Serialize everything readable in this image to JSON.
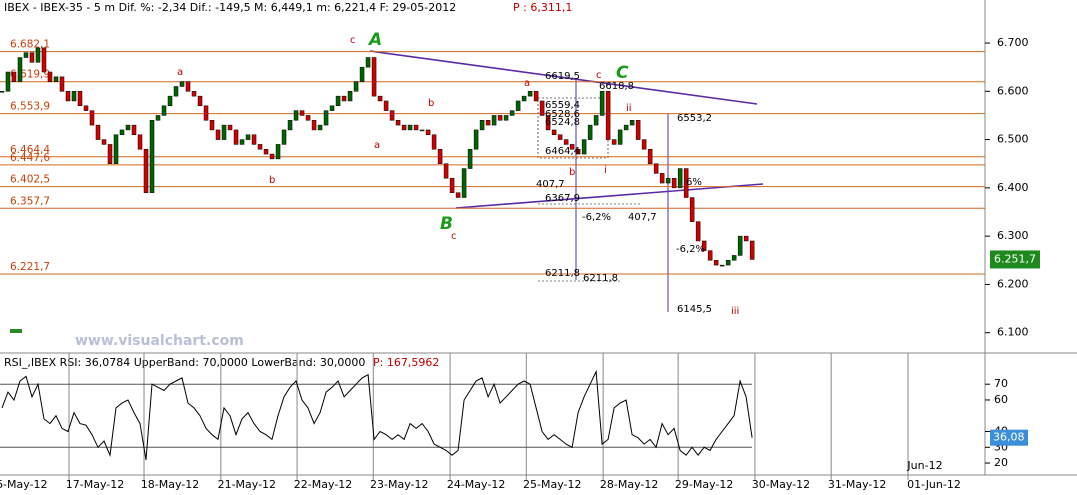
{
  "header": "IBEX - IBEX-35 -  5 m Dif. %: -2,34 Dif.: -149,5 M: 6,449,1 m: 6,221,4 F: 29-05-2012",
  "header_p": "P : 6,311,1",
  "watermark": "www.visualchart.com",
  "chart_data": {
    "type": "candlestick",
    "values": [
      6600,
      6640,
      6620,
      6670,
      6680,
      6660,
      6690,
      6640,
      6620,
      6630,
      6600,
      6580,
      6600,
      6570,
      6560,
      6530,
      6500,
      6490,
      6450,
      6510,
      6520,
      6530,
      6510,
      6480,
      6390,
      6540,
      6550,
      6570,
      6590,
      6610,
      6620,
      6600,
      6590,
      6570,
      6540,
      6520,
      6500,
      6530,
      6520,
      6490,
      6500,
      6510,
      6490,
      6480,
      6470,
      6460,
      6490,
      6520,
      6540,
      6560,
      6550,
      6540,
      6520,
      6530,
      6560,
      6570,
      6590,
      6580,
      6600,
      6620,
      6650,
      6670,
      6590,
      6580,
      6560,
      6540,
      6530,
      6520,
      6530,
      6520,
      6520,
      6510,
      6480,
      6450,
      6420,
      6390,
      6380,
      6440,
      6480,
      6520,
      6540,
      6530,
      6550,
      6540,
      6550,
      6560,
      6580,
      6590,
      6600,
      6580,
      6550,
      6520,
      6510,
      6500,
      6490,
      6480,
      6470,
      6500,
      6530,
      6550,
      6600,
      6500,
      6490,
      6520,
      6530,
      6540,
      6500,
      6480,
      6450,
      6430,
      6410,
      6420,
      6400,
      6440,
      6380,
      6330,
      6290,
      6270,
      6250,
      6240,
      6240,
      6250,
      6260,
      6300,
      6290,
      6251.7
    ],
    "last_label": "6.251,7",
    "up_color": "#006400",
    "down_color": "#d00000",
    "ylim": [
      6060,
      6756
    ],
    "yticks": [
      {
        "value": 6700,
        "label": "6.700"
      },
      {
        "value": 6600,
        "label": "6.600"
      },
      {
        "value": 6500,
        "label": "6.500"
      },
      {
        "value": 6400,
        "label": "6.400"
      },
      {
        "value": 6300,
        "label": "6.300"
      },
      {
        "value": 6200,
        "label": "6.200"
      },
      {
        "value": 6100,
        "label": "6.100"
      }
    ],
    "levels": [
      {
        "value": 6682.1,
        "label": "6.682,1"
      },
      {
        "value": 6619.9,
        "label": "6.619,9"
      },
      {
        "value": 6553.9,
        "label": "6.553,9"
      },
      {
        "value": 6464.4,
        "label": "6.464,4"
      },
      {
        "value": 6447.6,
        "label": "6.447,6"
      },
      {
        "value": 6402.5,
        "label": "6.402,5"
      },
      {
        "value": 6357.7,
        "label": "6.357,7"
      },
      {
        "value": 6221.7,
        "label": "6.221,7"
      }
    ],
    "xlim": [
      -0.33,
      163.8
    ],
    "xticks": [
      {
        "value": 3.3,
        "label": "6-May-12"
      },
      {
        "value": 15.5,
        "label": "17-May-12"
      },
      {
        "value": 28,
        "label": "18-May-12"
      },
      {
        "value": 40.8,
        "label": "21-May-12"
      },
      {
        "value": 53.5,
        "label": "22-May-12"
      },
      {
        "value": 66.2,
        "label": "23-May-12"
      },
      {
        "value": 79,
        "label": "24-May-12"
      },
      {
        "value": 91.7,
        "label": "25-May-12"
      },
      {
        "value": 104.5,
        "label": "28-May-12"
      },
      {
        "value": 117,
        "label": "29-May-12"
      },
      {
        "value": 129.8,
        "label": "30-May-12"
      },
      {
        "value": 142.5,
        "label": "31-May-12"
      },
      {
        "value": 155.3,
        "label": "01-Jun-12"
      }
    ],
    "month_label": "Jun-12",
    "annotations": [
      "A",
      "B",
      "C",
      "c",
      "a",
      "b",
      "a",
      "b",
      "c",
      "a",
      "c",
      "b",
      "i",
      "ii",
      "iii",
      "6619,5",
      "6618,8",
      "6559,4",
      "6528,6",
      "6524,8",
      "6464,4",
      "407,7",
      "6367,9",
      "-6,2%",
      "407,7",
      "-6,2%",
      "6211,8",
      "6211,8",
      "6553,2",
      "6145,5",
      "6%"
    ]
  },
  "rsi": {
    "type": "line",
    "header": "RSI_,IBEX RSI: 36,0784 UpperBand: 70,0000 LowerBand: 30,0000",
    "header_p": "P: 167,5962",
    "values": [
      55,
      65,
      60,
      72,
      75,
      62,
      70,
      48,
      45,
      50,
      42,
      40,
      52,
      45,
      44,
      38,
      30,
      34,
      25,
      55,
      58,
      60,
      52,
      45,
      22,
      70,
      68,
      66,
      70,
      72,
      74,
      58,
      55,
      50,
      42,
      38,
      35,
      55,
      50,
      38,
      48,
      52,
      45,
      40,
      38,
      35,
      50,
      62,
      68,
      72,
      60,
      55,
      45,
      52,
      65,
      68,
      72,
      62,
      66,
      70,
      74,
      76,
      35,
      40,
      38,
      35,
      38,
      35,
      45,
      42,
      45,
      40,
      32,
      30,
      28,
      25,
      28,
      60,
      66,
      72,
      74,
      62,
      70,
      58,
      62,
      66,
      70,
      72,
      70,
      55,
      40,
      35,
      38,
      35,
      32,
      30,
      52,
      62,
      70,
      78,
      32,
      35,
      55,
      58,
      60,
      38,
      36,
      32,
      35,
      30,
      45,
      38,
      42,
      28,
      25,
      30,
      25,
      30,
      28,
      35,
      40,
      45,
      50,
      72,
      62,
      36.0784
    ],
    "last_label": "36,08",
    "color": "#000000",
    "bands": [
      70,
      30
    ],
    "ylim": [
      17.5,
      79
    ],
    "yticks": [
      70,
      60,
      40,
      30,
      20
    ]
  }
}
